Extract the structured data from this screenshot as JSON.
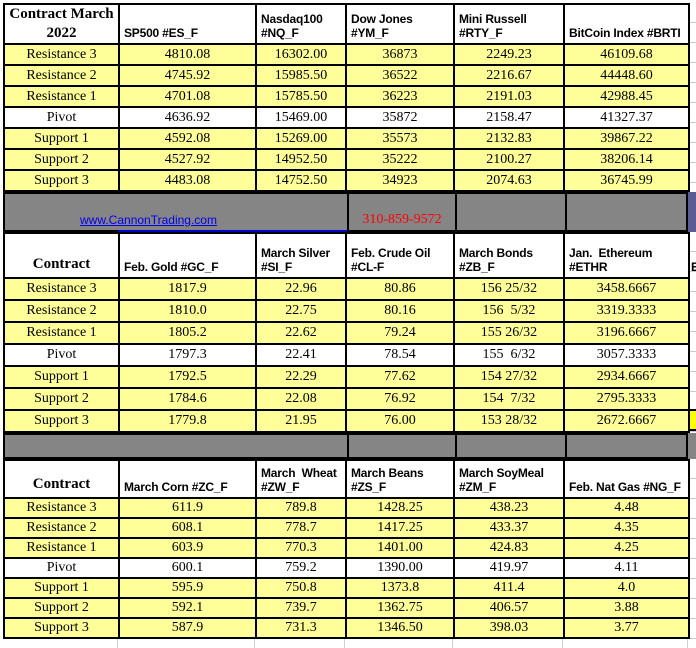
{
  "banner": {
    "link_text": "www.CannonTrading.com",
    "phone": "310-859-9572"
  },
  "cutoff_column": {
    "header_fragment": "E"
  },
  "colors": {
    "cell_yellow": "#FFFF99",
    "pivot_white": "#FFFFFF",
    "separator_gray": "#858585",
    "corner_dark_slate": "#5C5C94",
    "link_blue": "#0000EE",
    "phone_red": "#FF0000",
    "bright_yellow_sliver": "#FFFF00",
    "border_black": "#000000"
  },
  "tables": [
    {
      "id": "indices",
      "corner": "Contract March 2022",
      "columns": [
        "SP500 #ES_F",
        "Nasdaq100\n#NQ_F",
        "Dow Jones\n#YM_F",
        "Mini Russell\n#RTY_F",
        "BitCoin Index #BRTI"
      ],
      "rows": [
        {
          "label": "Resistance 3",
          "values": [
            "4810.08",
            "16302.00",
            "36873",
            "2249.23",
            "46109.68"
          ]
        },
        {
          "label": "Resistance 2",
          "values": [
            "4745.92",
            "15985.50",
            "36522",
            "2216.67",
            "44448.60"
          ]
        },
        {
          "label": "Resistance 1",
          "values": [
            "4701.08",
            "15785.50",
            "36223",
            "2191.03",
            "42988.45"
          ]
        },
        {
          "label": "Pivot",
          "pivot": true,
          "values": [
            "4636.92",
            "15469.00",
            "35872",
            "2158.47",
            "41327.37"
          ]
        },
        {
          "label": "Support 1",
          "values": [
            "4592.08",
            "15269.00",
            "35573",
            "2132.83",
            "39867.22"
          ]
        },
        {
          "label": "Support 2",
          "values": [
            "4527.92",
            "14952.50",
            "35222",
            "2100.27",
            "38206.14"
          ]
        },
        {
          "label": "Support 3",
          "values": [
            "4483.08",
            "14752.50",
            "34923",
            "2074.63",
            "36745.99"
          ]
        }
      ]
    },
    {
      "id": "commodities",
      "corner": "Contract",
      "columns": [
        "Feb. Gold #GC_F",
        "March Silver\n#SI_F",
        "Feb. Crude Oil\n#CL-F",
        "March Bonds\n#ZB_F",
        "Jan.  Ethereum\n#ETHR"
      ],
      "rows": [
        {
          "label": "Resistance 3",
          "values": [
            "1817.9",
            "22.96",
            "80.86",
            "156 25/32",
            "3458.6667"
          ]
        },
        {
          "label": "Resistance 2",
          "values": [
            "1810.0",
            "22.75",
            "80.16",
            "156  5/32",
            "3319.3333"
          ]
        },
        {
          "label": "Resistance 1",
          "values": [
            "1805.2",
            "22.62",
            "79.24",
            "155 26/32",
            "3196.6667"
          ]
        },
        {
          "label": "Pivot",
          "pivot": true,
          "values": [
            "1797.3",
            "22.41",
            "78.54",
            "155  6/32",
            "3057.3333"
          ]
        },
        {
          "label": "Support 1",
          "values": [
            "1792.5",
            "22.29",
            "77.62",
            "154 27/32",
            "2934.6667"
          ]
        },
        {
          "label": "Support 2",
          "values": [
            "1784.6",
            "22.08",
            "76.92",
            "154  7/32",
            "2795.3333"
          ]
        },
        {
          "label": "Support 3",
          "values": [
            "1779.8",
            "21.95",
            "76.00",
            "153 28/32",
            "2672.6667"
          ]
        }
      ]
    },
    {
      "id": "grains",
      "corner": "Contract",
      "columns": [
        "March Corn #ZC_F",
        "March  Wheat\n#ZW_F",
        "March Beans\n#ZS_F",
        "March SoyMeal\n#ZM_F",
        "Feb. Nat Gas #NG_F"
      ],
      "rows": [
        {
          "label": "Resistance 3",
          "values": [
            "611.9",
            "789.8",
            "1428.25",
            "438.23",
            "4.48"
          ]
        },
        {
          "label": "Resistance 2",
          "values": [
            "608.1",
            "778.7",
            "1417.25",
            "433.37",
            "4.35"
          ]
        },
        {
          "label": "Resistance 1",
          "values": [
            "603.9",
            "770.3",
            "1401.00",
            "424.83",
            "4.25"
          ]
        },
        {
          "label": "Pivot",
          "pivot": true,
          "values": [
            "600.1",
            "759.2",
            "1390.00",
            "419.97",
            "4.11"
          ]
        },
        {
          "label": "Support 1",
          "values": [
            "595.9",
            "750.8",
            "1373.8",
            "411.4",
            "4.0"
          ]
        },
        {
          "label": "Support 2",
          "values": [
            "592.1",
            "739.7",
            "1362.75",
            "406.57",
            "3.88"
          ]
        },
        {
          "label": "Support 3",
          "values": [
            "587.9",
            "731.3",
            "1346.50",
            "398.03",
            "3.77"
          ]
        }
      ]
    }
  ]
}
